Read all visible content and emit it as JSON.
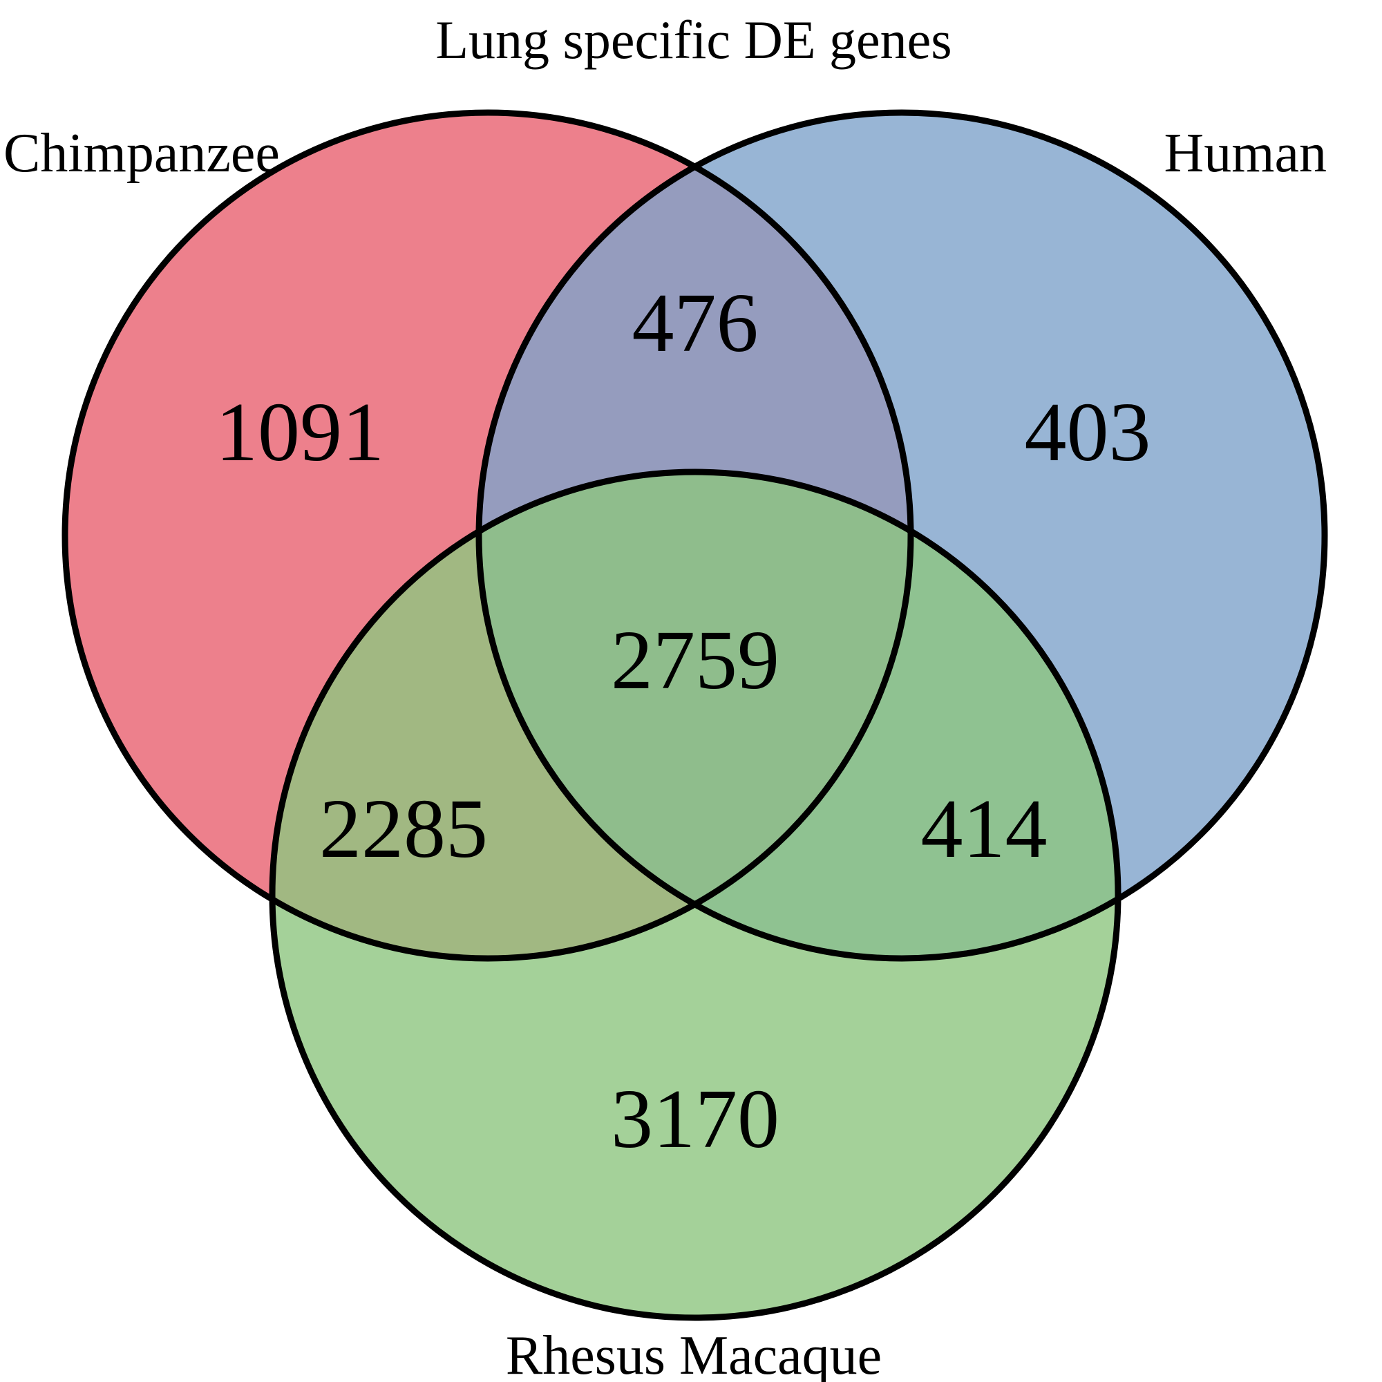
{
  "title": "Lung specific DE genes",
  "sets": {
    "chimpanzee": {
      "label": "Chimpanzee",
      "color": "#e8606f"
    },
    "human": {
      "label": "Human",
      "color": "#7ea2cb"
    },
    "rhesus": {
      "label": "Rhesus Macaque",
      "color": "#8dc67f"
    }
  },
  "regions": {
    "chimpanzee_only": "1091",
    "human_only": "403",
    "rhesus_only": "3170",
    "chimpanzee_human": "476",
    "chimpanzee_rhesus": "2285",
    "human_rhesus": "414",
    "all_three": "2759"
  },
  "outline_color": "#000000",
  "fill_opacity": 0.8
}
